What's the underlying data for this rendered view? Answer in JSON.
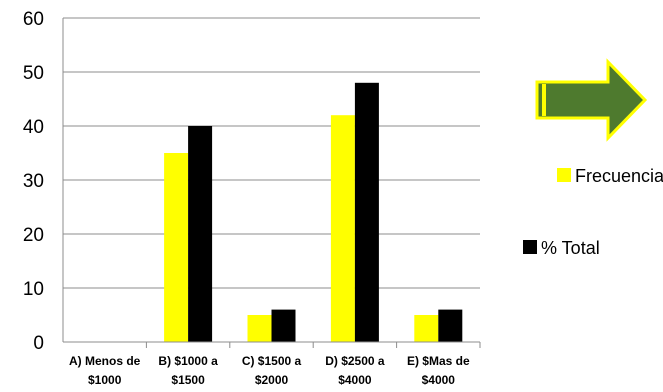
{
  "colors": {
    "frecuencia": "#ffff00",
    "total": "#000000",
    "grid": "#8c8c8c",
    "arrow_fill": "#4e7a2e",
    "arrow_stroke": "#ffff00"
  },
  "chart_data": {
    "type": "bar",
    "ylim": [
      0,
      60
    ],
    "yticks": [
      0,
      10,
      20,
      30,
      40,
      50,
      60
    ],
    "grid": true,
    "legend_position": "right",
    "categories": [
      {
        "line1": "A) Menos de",
        "line2": "$1000"
      },
      {
        "line1": "B) $1000 a",
        "line2": "$1500"
      },
      {
        "line1": "C) $1500 a",
        "line2": "$2000"
      },
      {
        "line1": "D) $2500 a",
        "line2": "$4000"
      },
      {
        "line1": "E) $Mas de",
        "line2": "$4000"
      }
    ],
    "series": [
      {
        "name": "Frecuencia",
        "color": "#ffff00",
        "values": [
          0,
          35,
          5,
          42,
          5
        ]
      },
      {
        "name": "%  Total",
        "color": "#000000",
        "values": [
          0,
          40,
          6,
          48,
          6
        ]
      }
    ]
  },
  "decoration": {
    "arrow_icon": "right-arrow-icon"
  }
}
